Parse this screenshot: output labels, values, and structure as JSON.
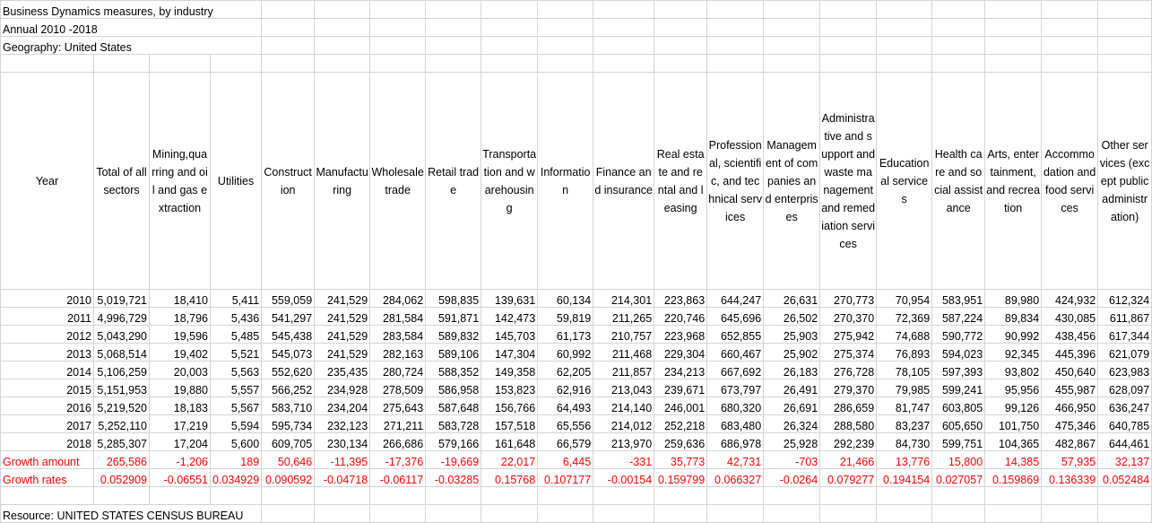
{
  "title": "Business Dynamics measures, by industry",
  "period": "Annual 2010 -2018",
  "geography": "Geography: United States",
  "columns": [
    "Year",
    "Total of all sectors",
    "Mining,quarring and oil and gas extraction",
    "Utilities",
    "Construction",
    "Manufacturing",
    "Wholesale trade",
    "Retail trade",
    "Transportation and warehousing",
    "Information",
    "Finance and insurance",
    "Real estate and rental and leasing",
    "Professional, scientific, and technical services",
    "Management of companies and enterprises",
    "Administrative and support and waste management and remediation services",
    "Educational services",
    "Health care and social assistance",
    "Arts, entertainment, and recreation",
    "Accommodation and food services",
    "Other services (except public administration)"
  ],
  "rows": [
    [
      "2010",
      "5,019,721",
      "18,410",
      "5,411",
      "559,059",
      "241,529",
      "284,062",
      "598,835",
      "139,631",
      "60,134",
      "214,301",
      "223,863",
      "644,247",
      "26,631",
      "270,773",
      "70,954",
      "583,951",
      "89,980",
      "424,932",
      "612,324"
    ],
    [
      "2011",
      "4,996,729",
      "18,796",
      "5,436",
      "541,297",
      "241,529",
      "281,584",
      "591,871",
      "142,473",
      "59,819",
      "211,265",
      "220,746",
      "645,696",
      "26,502",
      "270,370",
      "72,369",
      "587,224",
      "89,834",
      "430,085",
      "611,867"
    ],
    [
      "2012",
      "5,043,290",
      "19,596",
      "5,485",
      "545,438",
      "241,529",
      "283,584",
      "589,832",
      "145,703",
      "61,173",
      "210,757",
      "223,968",
      "652,855",
      "25,903",
      "275,942",
      "74,688",
      "590,772",
      "90,992",
      "438,456",
      "617,344"
    ],
    [
      "2013",
      "5,068,514",
      "19,402",
      "5,521",
      "545,073",
      "241,529",
      "282,163",
      "589,106",
      "147,304",
      "60,992",
      "211,468",
      "229,304",
      "660,467",
      "25,902",
      "275,374",
      "76,893",
      "594,023",
      "92,345",
      "445,396",
      "621,079"
    ],
    [
      "2014",
      "5,106,259",
      "20,003",
      "5,563",
      "552,620",
      "235,435",
      "280,724",
      "588,352",
      "149,358",
      "62,205",
      "211,857",
      "234,213",
      "667,692",
      "26,183",
      "276,728",
      "78,105",
      "597,393",
      "93,802",
      "450,640",
      "623,983"
    ],
    [
      "2015",
      "5,151,953",
      "19,880",
      "5,557",
      "566,252",
      "234,928",
      "278,509",
      "586,958",
      "153,823",
      "62,916",
      "213,043",
      "239,671",
      "673,797",
      "26,491",
      "279,370",
      "79,985",
      "599,241",
      "95,956",
      "455,987",
      "628,097"
    ],
    [
      "2016",
      "5,219,520",
      "18,183",
      "5,567",
      "583,710",
      "234,204",
      "275,643",
      "587,648",
      "156,766",
      "64,493",
      "214,140",
      "246,001",
      "680,320",
      "26,691",
      "286,659",
      "81,747",
      "603,805",
      "99,126",
      "466,950",
      "636,247"
    ],
    [
      "2017",
      "5,252,110",
      "17,219",
      "5,594",
      "595,734",
      "232,123",
      "271,211",
      "583,728",
      "157,518",
      "65,556",
      "214,012",
      "252,218",
      "683,480",
      "26,324",
      "288,580",
      "83,237",
      "605,650",
      "101,750",
      "475,346",
      "640,785"
    ],
    [
      "2018",
      "5,285,307",
      "17,204",
      "5,600",
      "609,705",
      "230,134",
      "266,686",
      "579,166",
      "161,648",
      "66,579",
      "213,970",
      "259,636",
      "686,978",
      "25,928",
      "292,239",
      "84,730",
      "599,751",
      "104,365",
      "482,867",
      "644,461"
    ]
  ],
  "growth_amount": [
    "Growth amount",
    "265,586",
    "-1,206",
    "189",
    "50,646",
    "-11,395",
    "-17,376",
    "-19,669",
    "22,017",
    "6,445",
    "-331",
    "35,773",
    "42,731",
    "-703",
    "21,466",
    "13,776",
    "15,800",
    "14,385",
    "57,935",
    "32,137"
  ],
  "growth_rates": [
    "Growth rates",
    "0.052909",
    "-0.06551",
    "0.034929",
    "0.090592",
    "-0.04718",
    "-0.06117",
    "-0.03285",
    "0.15768",
    "0.107177",
    "-0.00154",
    "0.159799",
    "0.066327",
    "-0.0264",
    "0.079277",
    "0.194154",
    "0.027057",
    "0.159869",
    "0.136339",
    "0.052484"
  ],
  "resource": "Resource: UNITED STATES CENSUS BUREAU",
  "colors": {
    "growth_text": "#ff0000",
    "grid": "#d4d4d4"
  }
}
